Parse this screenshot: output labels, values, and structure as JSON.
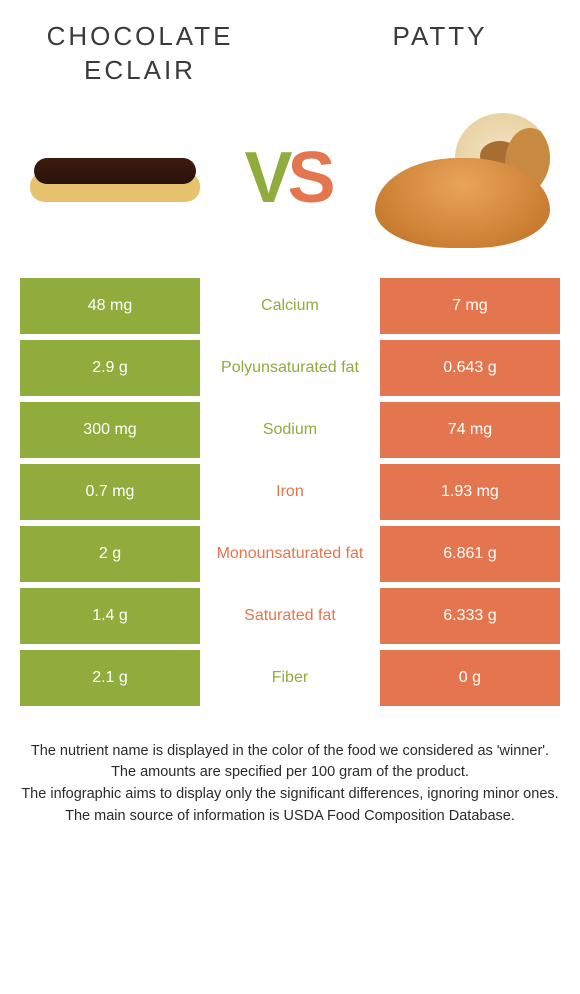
{
  "colors": {
    "left_bg": "#8fac3c",
    "right_bg": "#e3764e",
    "mid_left": "#8fac3c",
    "mid_right": "#e3764e",
    "vs_v": "#8fac3c",
    "vs_s": "#e3764e"
  },
  "titles": {
    "left": "CHOCOLATE ECLAIR",
    "right": "PATTY"
  },
  "vs": {
    "v": "V",
    "s": "S"
  },
  "rows": [
    {
      "left": "48 mg",
      "mid": "Calcium",
      "right": "7 mg",
      "winner": "left"
    },
    {
      "left": "2.9 g",
      "mid": "Polyunsaturated fat",
      "right": "0.643 g",
      "winner": "left"
    },
    {
      "left": "300 mg",
      "mid": "Sodium",
      "right": "74 mg",
      "winner": "left"
    },
    {
      "left": "0.7 mg",
      "mid": "Iron",
      "right": "1.93 mg",
      "winner": "right"
    },
    {
      "left": "2 g",
      "mid": "Monounsaturated fat",
      "right": "6.861 g",
      "winner": "right"
    },
    {
      "left": "1.4 g",
      "mid": "Saturated fat",
      "right": "6.333 g",
      "winner": "right"
    },
    {
      "left": "2.1 g",
      "mid": "Fiber",
      "right": "0 g",
      "winner": "left"
    }
  ],
  "footnotes": [
    "The nutrient name is displayed in the color of the food we considered as 'winner'.",
    "The amounts are specified per 100 gram of the product.",
    "The infographic aims to display only the significant differences, ignoring minor ones.",
    "The main source of information is USDA Food Composition Database."
  ]
}
